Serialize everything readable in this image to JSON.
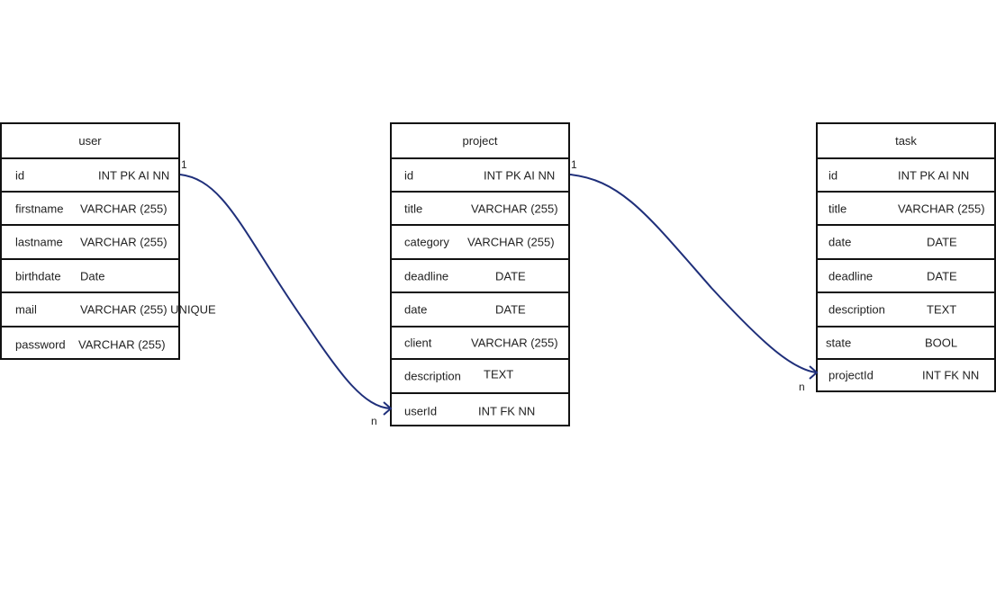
{
  "tables": {
    "user": {
      "name": "user",
      "fields": [
        {
          "name": "id",
          "type": "INT PK AI NN"
        },
        {
          "name": "firstname",
          "type": "VARCHAR (255)"
        },
        {
          "name": "lastname",
          "type": "VARCHAR (255)"
        },
        {
          "name": "birthdate",
          "type": "Date"
        },
        {
          "name": "mail",
          "type": "VARCHAR (255) UNIQUE"
        },
        {
          "name": "password",
          "type": "VARCHAR (255)"
        }
      ]
    },
    "project": {
      "name": "project",
      "fields": [
        {
          "name": "id",
          "type": "INT PK AI NN"
        },
        {
          "name": "title",
          "type": "VARCHAR (255)"
        },
        {
          "name": "category",
          "type": "VARCHAR (255)"
        },
        {
          "name": "deadline",
          "type": "DATE"
        },
        {
          "name": "date",
          "type": "DATE"
        },
        {
          "name": "client",
          "type": "VARCHAR (255)"
        },
        {
          "name": "description",
          "type": "TEXT"
        },
        {
          "name": "userId",
          "type": "INT FK NN"
        }
      ]
    },
    "task": {
      "name": "task",
      "fields": [
        {
          "name": "id",
          "type": "INT PK AI NN"
        },
        {
          "name": "title",
          "type": "VARCHAR (255)"
        },
        {
          "name": "date",
          "type": "DATE"
        },
        {
          "name": "deadline",
          "type": "DATE"
        },
        {
          "name": "description",
          "type": "TEXT"
        },
        {
          "name": "state",
          "type": "BOOL"
        },
        {
          "name": "projectId",
          "type": "INT FK NN"
        }
      ]
    }
  },
  "relations": {
    "user_project": {
      "from_card": "1",
      "to_card": "n"
    },
    "project_task": {
      "from_card": "1",
      "to_card": "n"
    }
  },
  "colors": {
    "connector": "#1f2f7a",
    "border": "#111111"
  }
}
